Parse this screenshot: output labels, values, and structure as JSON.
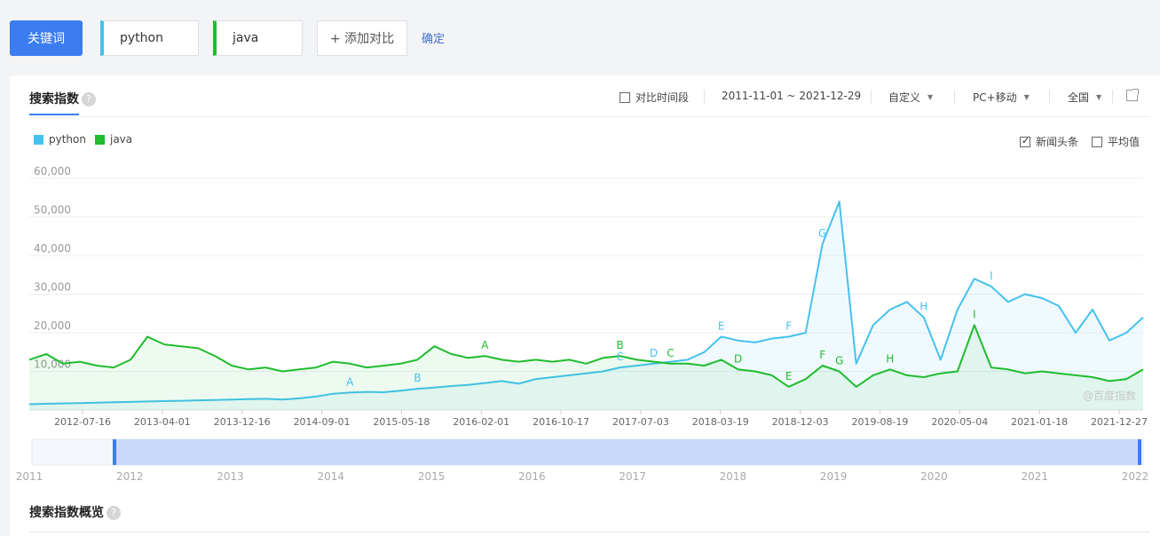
{
  "keywords": {
    "button_label": "关键词",
    "items": [
      {
        "label": "python",
        "color": "#45c1ef"
      },
      {
        "label": "java",
        "color": "#1fbc2e"
      }
    ],
    "add_label": "+ 添加对比",
    "confirm_label": "确定"
  },
  "panel": {
    "tab_title": "搜索指数",
    "help_icon": "question-circle-icon",
    "controls": {
      "compare_period_label": "对比时间段",
      "date_range": "2011-11-01 ~ 2021-12-29",
      "custom_label": "自定义",
      "device_label": "PC+移动",
      "region_label": "全国",
      "export_icon": "external-link-icon"
    },
    "options": {
      "news_label": "新闻头条",
      "news_checked": true,
      "average_label": "平均值",
      "average_checked": false
    },
    "watermark": "@百度指数",
    "overview_title": "搜索指数概览"
  },
  "chart_data": {
    "type": "line",
    "title": "",
    "xlabel": "",
    "ylabel": "",
    "ylim": [
      0,
      60000
    ],
    "yticks": [
      "60,000",
      "50,000",
      "40,000",
      "30,000",
      "20,000",
      "10,000"
    ],
    "grid": true,
    "legend_position": "top-left",
    "x_tick_labels": [
      "2012-07-16",
      "2013-04-01",
      "2013-12-16",
      "2014-09-01",
      "2015-05-18",
      "2016-02-01",
      "2016-10-17",
      "2017-07-03",
      "2018-03-19",
      "2018-12-03",
      "2019-08-19",
      "2020-05-04",
      "2021-01-18",
      "2021-12-27"
    ],
    "x": [
      "2011-11",
      "2012-01",
      "2012-03",
      "2012-05",
      "2012-07",
      "2012-09",
      "2012-11",
      "2013-01",
      "2013-02",
      "2013-03",
      "2013-04",
      "2013-06",
      "2013-08",
      "2013-10",
      "2013-12",
      "2014-02",
      "2014-04",
      "2014-06",
      "2014-08",
      "2014-10",
      "2014-12",
      "2015-02",
      "2015-04",
      "2015-06",
      "2015-08",
      "2015-10",
      "2015-12",
      "2016-02",
      "2016-04",
      "2016-06",
      "2016-08",
      "2016-10",
      "2016-12",
      "2017-02",
      "2017-04",
      "2017-06",
      "2017-08",
      "2017-10",
      "2017-12",
      "2018-02",
      "2018-03",
      "2018-04",
      "2018-06",
      "2018-08",
      "2018-10",
      "2018-12",
      "2019-01",
      "2019-02",
      "2019-03",
      "2019-04",
      "2019-06",
      "2019-08",
      "2019-10",
      "2019-12",
      "2020-02",
      "2020-03",
      "2020-04",
      "2020-06",
      "2020-08",
      "2020-10",
      "2020-12",
      "2021-02",
      "2021-04",
      "2021-06",
      "2021-08",
      "2021-10",
      "2021-12"
    ],
    "series": [
      {
        "name": "python",
        "color": "#45c1ef",
        "values": [
          1500,
          1600,
          1700,
          1800,
          1900,
          2000,
          2100,
          2200,
          2300,
          2400,
          2500,
          2600,
          2700,
          2800,
          2900,
          2700,
          3000,
          3500,
          4200,
          4500,
          4700,
          4600,
          5000,
          5500,
          5800,
          6200,
          6500,
          7000,
          7500,
          6800,
          8000,
          8500,
          9000,
          9500,
          10000,
          11000,
          11500,
          12000,
          12500,
          13000,
          15000,
          19000,
          18000,
          17500,
          18500,
          19000,
          20000,
          43000,
          54000,
          12000,
          22000,
          26000,
          28000,
          24000,
          13000,
          26000,
          34000,
          32000,
          28000,
          30000,
          29000,
          27000,
          20000,
          26000,
          18000,
          20000,
          24000
        ]
      },
      {
        "name": "java",
        "color": "#1fbc2e",
        "values": [
          13000,
          14500,
          12000,
          12500,
          11500,
          11000,
          13000,
          19000,
          17000,
          16500,
          16000,
          14000,
          11500,
          10500,
          11000,
          10000,
          10500,
          11000,
          12500,
          12000,
          11000,
          11500,
          12000,
          13000,
          16500,
          14500,
          13500,
          14000,
          13000,
          12500,
          13000,
          12500,
          13000,
          12000,
          13500,
          14000,
          13000,
          12500,
          12000,
          12000,
          11500,
          13000,
          10500,
          10000,
          9000,
          6000,
          8000,
          11500,
          10000,
          6000,
          9000,
          10500,
          9000,
          8500,
          9500,
          10000,
          22000,
          11000,
          10500,
          9500,
          10000,
          9500,
          9000,
          8500,
          7500,
          8000,
          10500
        ]
      }
    ],
    "annotations": [
      {
        "label": "A",
        "series": "python"
      },
      {
        "label": "B",
        "series": "python"
      },
      {
        "label": "C",
        "series": "python"
      },
      {
        "label": "D",
        "series": "python"
      },
      {
        "label": "E",
        "series": "python"
      },
      {
        "label": "F",
        "series": "python"
      },
      {
        "label": "G",
        "series": "python"
      },
      {
        "label": "H",
        "series": "python"
      },
      {
        "label": "I",
        "series": "python"
      },
      {
        "label": "A",
        "series": "java"
      },
      {
        "label": "B",
        "series": "java"
      },
      {
        "label": "C",
        "series": "java"
      },
      {
        "label": "D",
        "series": "java"
      },
      {
        "label": "E",
        "series": "java"
      },
      {
        "label": "F",
        "series": "java"
      },
      {
        "label": "G",
        "series": "java"
      },
      {
        "label": "H",
        "series": "java"
      },
      {
        "label": "I",
        "series": "java"
      }
    ]
  },
  "timeline": {
    "year_labels": [
      "2011",
      "2012",
      "2013",
      "2014",
      "2015",
      "2016",
      "2017",
      "2018",
      "2019",
      "2020",
      "2021",
      "2022"
    ],
    "selected_range": [
      "2012",
      "2022"
    ]
  }
}
